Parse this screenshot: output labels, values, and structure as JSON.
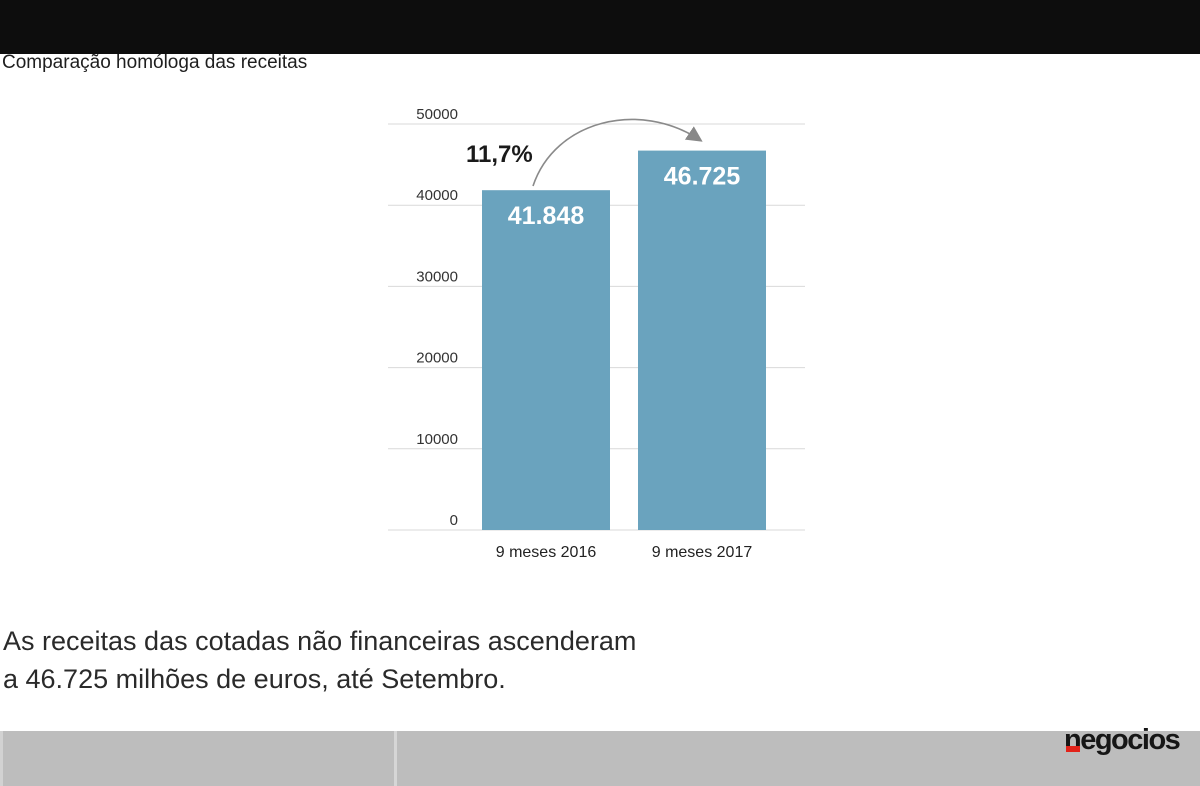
{
  "header": {
    "title": "Comparação homóloga das receitas"
  },
  "chart_data": {
    "type": "bar",
    "title": "Comparação homóloga das receitas",
    "categories": [
      "9 meses 2016",
      "9 meses 2017"
    ],
    "values": [
      41848,
      46725
    ],
    "data_labels": [
      "41.848",
      "46.725"
    ],
    "yticks": [
      "0",
      "10000",
      "20000",
      "30000",
      "40000",
      "50000"
    ],
    "ylim": [
      0,
      50000
    ],
    "grid": true,
    "annotation": "11,7%",
    "bar_color": "#6aa3be"
  },
  "caption": {
    "line1": "As receitas das cotadas não financeiras ascenderam",
    "line2": "a 46.725 milhões de euros, até Setembro."
  },
  "brand": {
    "logo_text": "negocios",
    "accent_color": "#e2231a"
  }
}
